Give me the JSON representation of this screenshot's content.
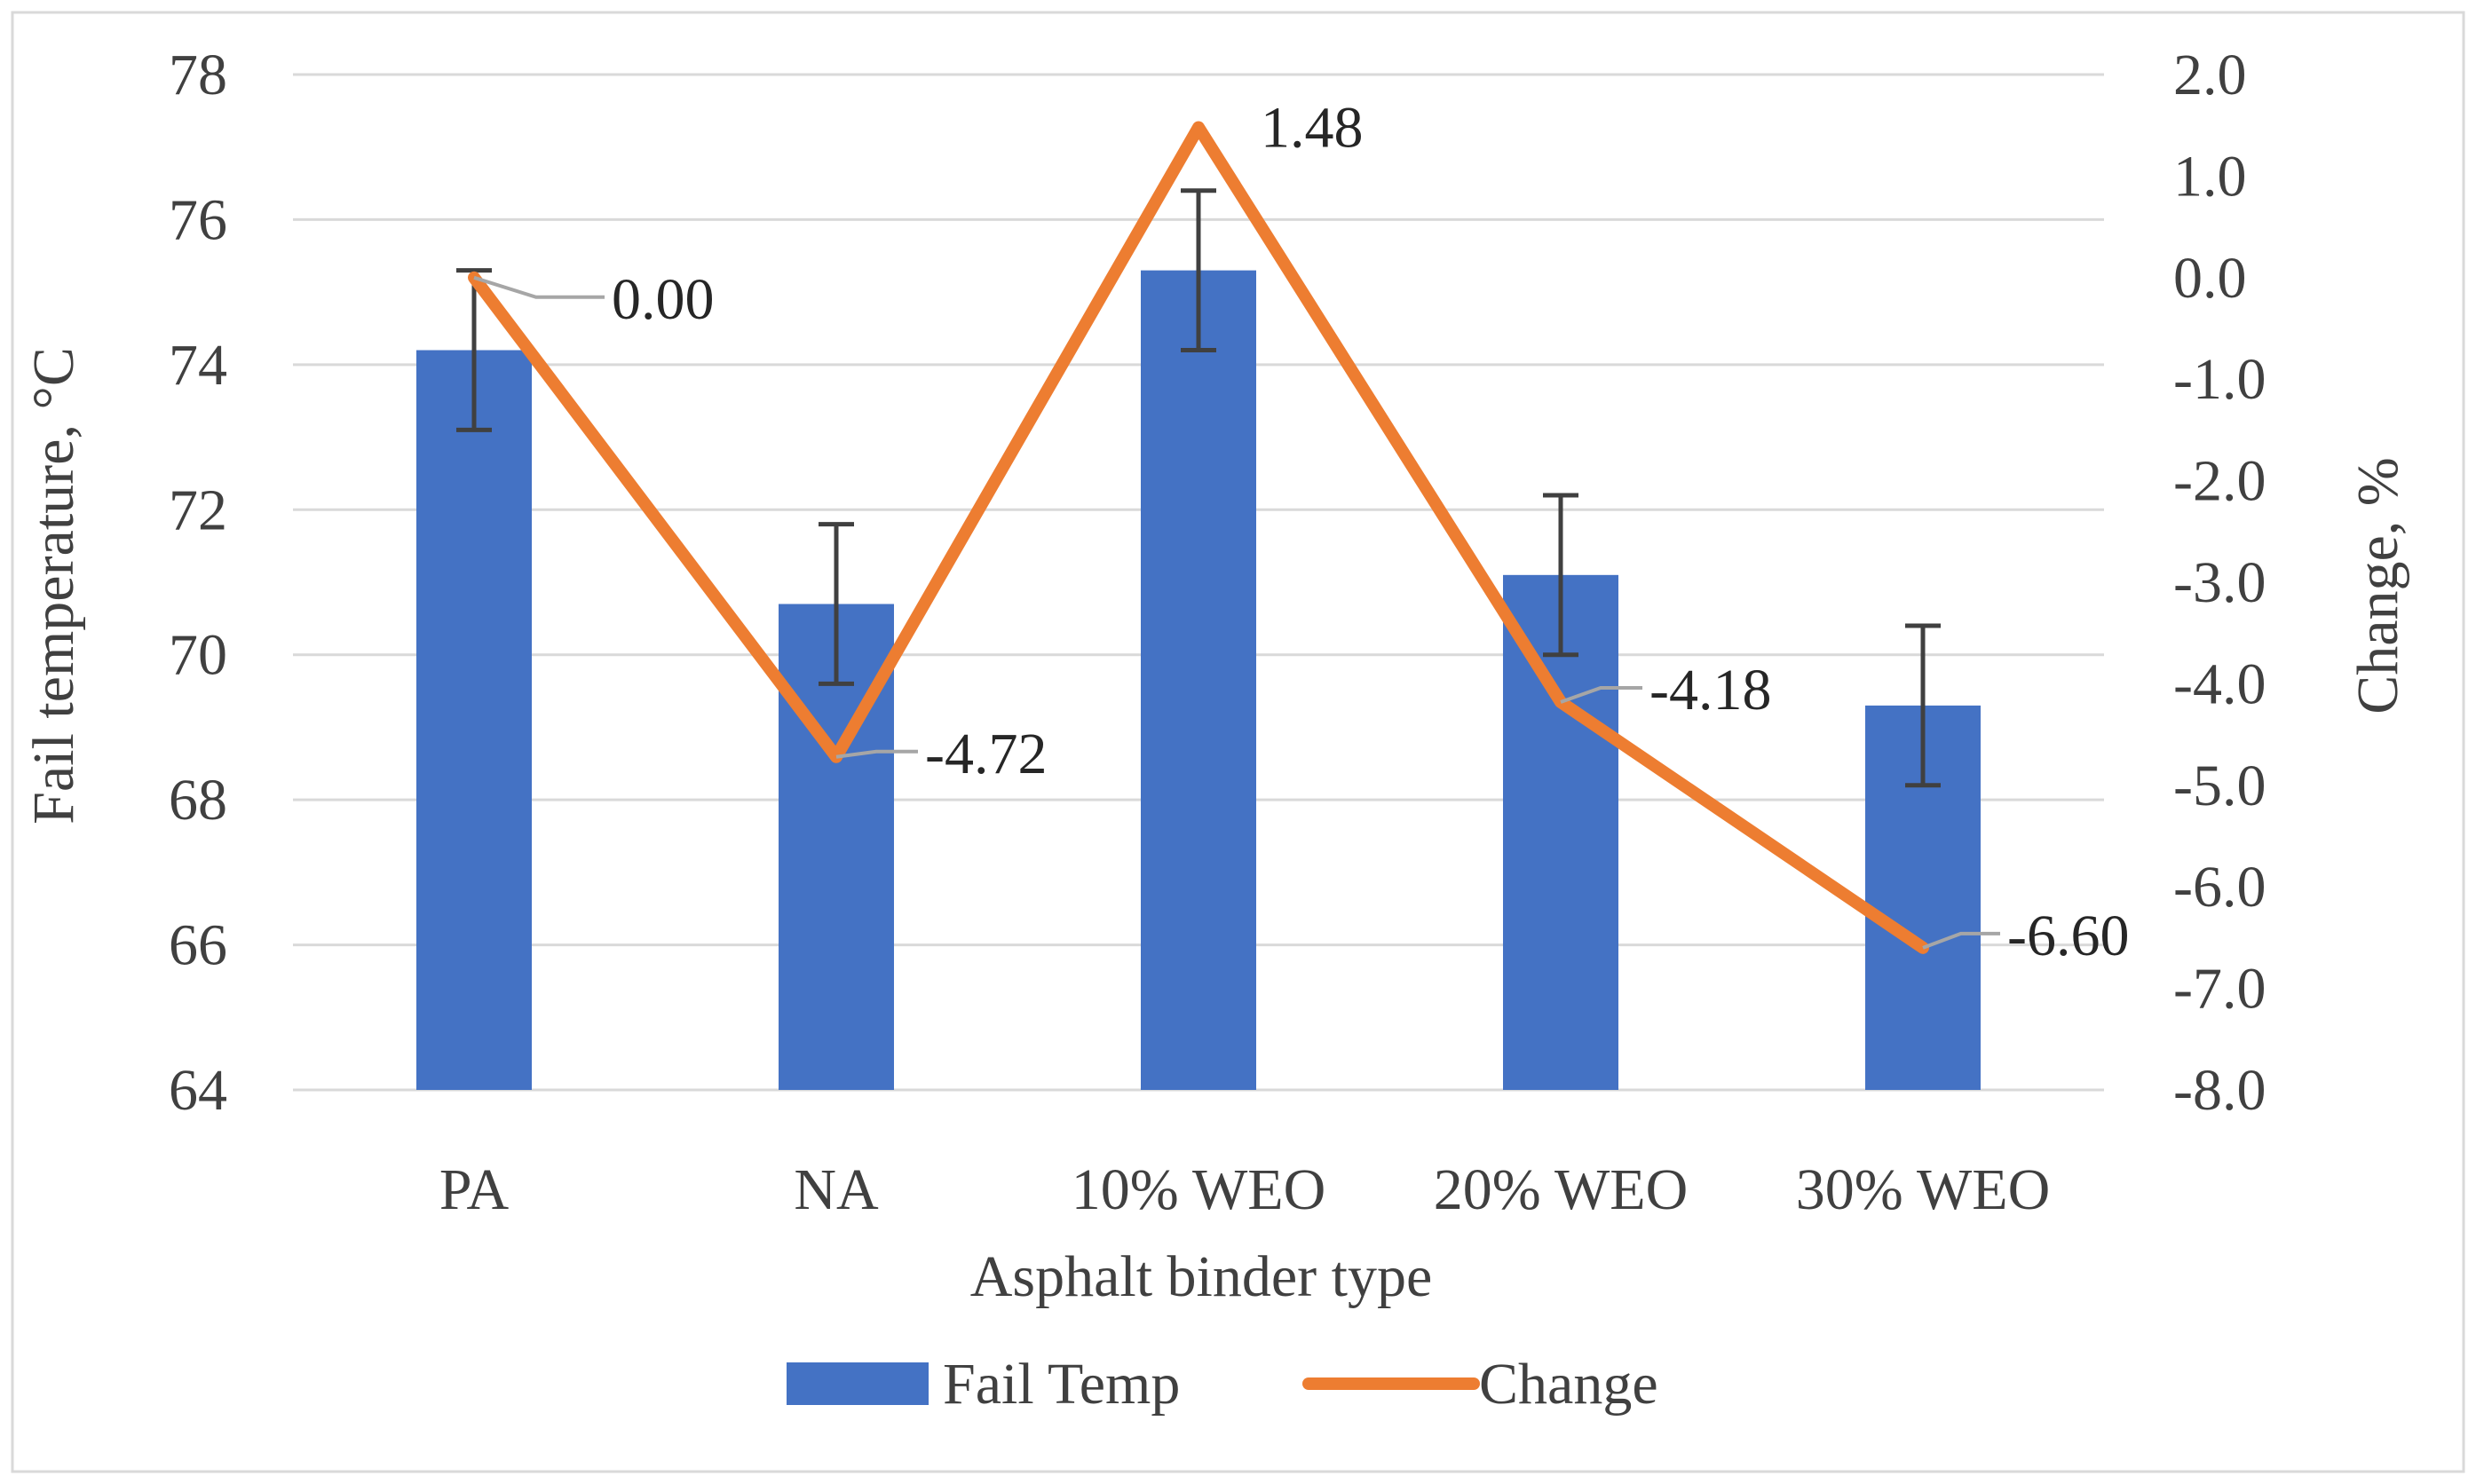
{
  "chart_data": {
    "type": "bar",
    "categories": [
      "PA",
      "NA",
      "10% WEO",
      "20% WEO",
      "30% WEO"
    ],
    "xlabel": "Asphalt binder type",
    "series": [
      {
        "name": "Fail Temp",
        "type": "bar",
        "axis": "left",
        "color": "#4472C4",
        "values": [
          74.2,
          70.7,
          75.3,
          71.1,
          69.3
        ],
        "error_high": [
          75.3,
          71.8,
          76.4,
          72.2,
          70.4
        ],
        "error_low": [
          73.1,
          69.6,
          74.2,
          70.0,
          68.2
        ]
      },
      {
        "name": "Change",
        "type": "line",
        "axis": "right",
        "color": "#ED7D31",
        "values": [
          0.0,
          -4.72,
          1.48,
          -4.18,
          -6.6
        ],
        "labels": [
          "0.00",
          "-4.72",
          "1.48",
          "-4.18",
          "-6.60"
        ]
      }
    ],
    "y_left": {
      "label": "Fail temperature, °C",
      "range": [
        64,
        78
      ],
      "ticks": [
        "64",
        "66",
        "68",
        "70",
        "72",
        "74",
        "76",
        "78"
      ]
    },
    "y_right": {
      "label": "Change, %",
      "range": [
        -8.0,
        2.0
      ],
      "ticks": [
        "2.0",
        "1.0",
        "0.0",
        "-1.0",
        "-2.0",
        "-3.0",
        "-4.0",
        "-5.0",
        "-6.0",
        "-7.0",
        "-8.0"
      ]
    },
    "grid": true,
    "legend": "bottom"
  }
}
